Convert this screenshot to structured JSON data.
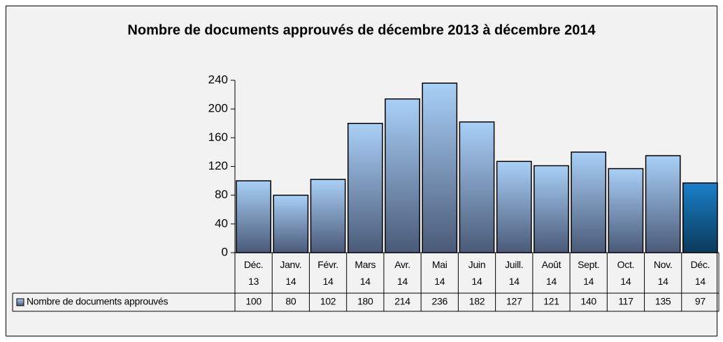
{
  "chart_data": {
    "type": "bar",
    "title": "Nombre de documents approuvés de décembre 2013 à décembre 2014",
    "categories": [
      "Déc. 13",
      "Janv. 14",
      "Févr. 14",
      "Mars 14",
      "Avr. 14",
      "Mai 14",
      "Juin 14",
      "Juill. 14",
      "Août 14",
      "Sept. 14",
      "Oct. 14",
      "Nov. 14",
      "Déc. 14"
    ],
    "series": [
      {
        "name": "Nombre de documents approuvés",
        "color": "#a9d0f7",
        "values": [
          100,
          80,
          102,
          180,
          214,
          236,
          182,
          127,
          121,
          140,
          117,
          135,
          97
        ]
      }
    ],
    "highlight_index": 12,
    "highlight_color": "#1a7fc8",
    "ylim": [
      0,
      240
    ],
    "yticks": [
      0,
      40,
      80,
      120,
      160,
      200,
      240
    ],
    "data_table": true
  }
}
